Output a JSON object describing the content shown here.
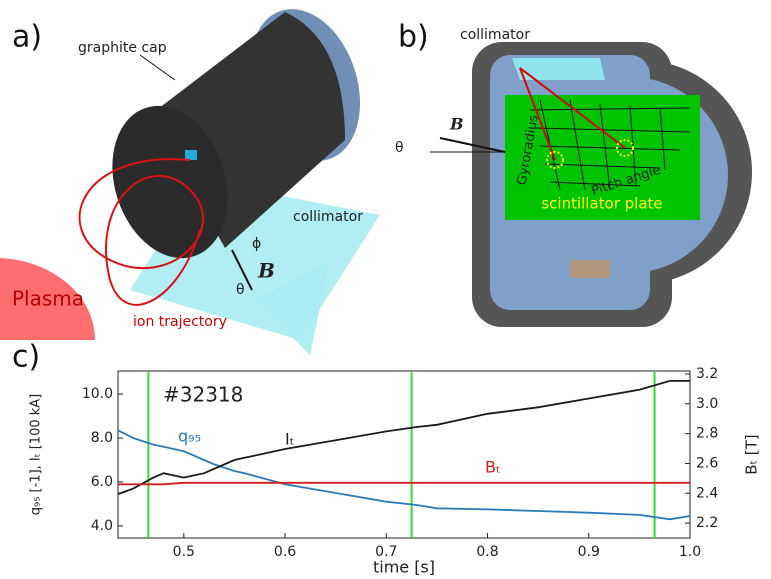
{
  "panels": {
    "a": {
      "label": "a)",
      "graphite_cap": "graphite cap",
      "collimator": "collimator",
      "plasma": "Plasma",
      "ion_trajectory": "ion trajectory",
      "phi": "ϕ",
      "theta": "θ",
      "field": "B"
    },
    "b": {
      "label": "b)",
      "collimator": "collimator",
      "field": "B",
      "theta": "θ",
      "gyroradius": "Gyroradius",
      "pitch_angle": "Pitch angle",
      "plate": "scintillator plate"
    },
    "c": {
      "label": "c)"
    }
  },
  "chart_data": {
    "type": "line",
    "annotation": "#32318",
    "xlabel": "time [s]",
    "ylabel": "q₉₅ [-1], Iₜ [100 kA]",
    "y2label": "Bₜ [T]",
    "x": [
      0.435,
      0.45,
      0.47,
      0.48,
      0.5,
      0.52,
      0.53,
      0.55,
      0.56,
      0.6,
      0.65,
      0.7,
      0.73,
      0.75,
      0.8,
      0.85,
      0.9,
      0.95,
      0.98,
      1.0
    ],
    "series": [
      {
        "name": "q₉₅",
        "color": "#2b7bb9",
        "values": [
          8.35,
          8.0,
          7.7,
          7.6,
          7.4,
          7.0,
          6.8,
          6.5,
          6.4,
          5.9,
          5.5,
          5.1,
          4.95,
          4.8,
          4.75,
          4.68,
          4.6,
          4.5,
          4.3,
          4.45
        ]
      },
      {
        "name": "Iₜ",
        "color": "#1a1a1a",
        "values": [
          5.45,
          5.7,
          6.2,
          6.4,
          6.2,
          6.4,
          6.6,
          7.0,
          7.1,
          7.5,
          7.9,
          8.3,
          8.5,
          8.6,
          9.1,
          9.4,
          9.8,
          10.2,
          10.6,
          10.6
        ]
      },
      {
        "name": "Bₜ",
        "color": "#d41f1f",
        "axis": "y2",
        "values": [
          2.46,
          2.46,
          2.46,
          2.46,
          2.47,
          2.47,
          2.47,
          2.47,
          2.47,
          2.47,
          2.47,
          2.47,
          2.47,
          2.47,
          2.47,
          2.47,
          2.47,
          2.47,
          2.47,
          2.47
        ]
      }
    ],
    "vlines": [
      0.465,
      0.725,
      0.965
    ],
    "vline_color": "#33dd33",
    "xlim": [
      0.435,
      1.0
    ],
    "xticks": [
      0.5,
      0.6,
      0.7,
      0.8,
      0.9,
      {
        "value": 1.0,
        "label": "1.0"
      }
    ],
    "ylim": [
      3.45,
      11.05
    ],
    "yticks": [
      {
        "value": 4.0,
        "label": "4.0"
      },
      {
        "value": 6.0,
        "label": "6.0"
      },
      {
        "value": 8.0,
        "label": "8.0"
      },
      {
        "value": 10.0,
        "label": "10.0"
      }
    ],
    "y2lim": [
      2.1,
      3.22
    ],
    "y2ticks": [
      2.2,
      2.4,
      2.6,
      2.8,
      {
        "value": 3.0,
        "label": "3.0"
      },
      3.2
    ]
  }
}
